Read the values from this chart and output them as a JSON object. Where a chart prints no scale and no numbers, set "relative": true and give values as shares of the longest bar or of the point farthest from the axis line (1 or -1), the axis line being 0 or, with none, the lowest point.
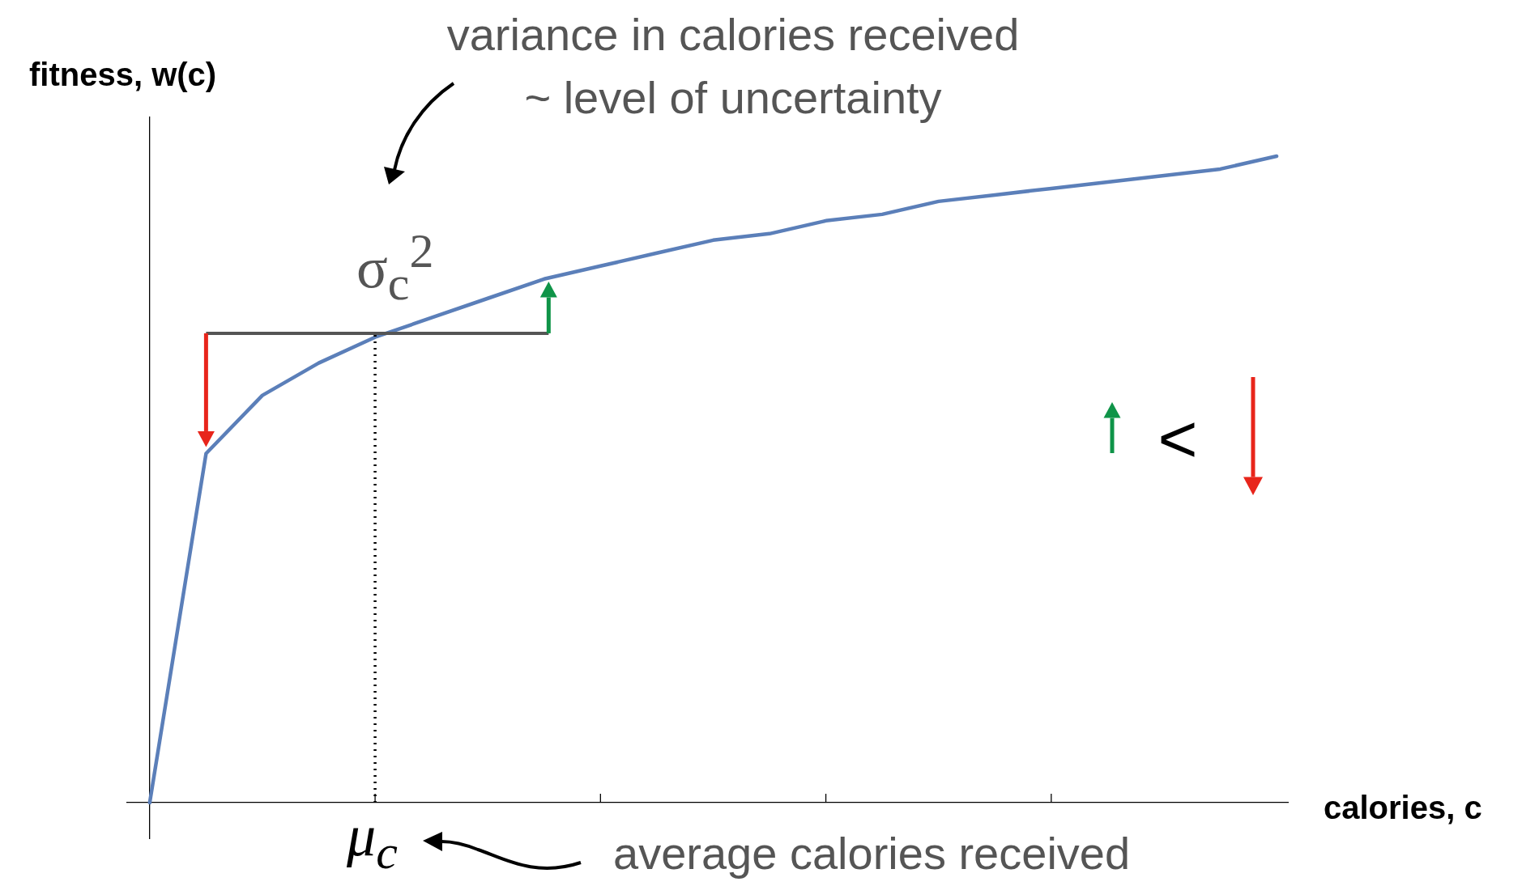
{
  "chart_data": {
    "type": "line",
    "relative": true,
    "xlabel": "calories, c",
    "ylabel": "fitness, w(c)",
    "categories": [
      null,
      null,
      null,
      null,
      null,
      null,
      null,
      null,
      null,
      null,
      null,
      null,
      null,
      null,
      null,
      null,
      null,
      null,
      null,
      null,
      null
    ],
    "series": [
      {
        "color": "#5b7fb9",
        "values": [
          0,
          0.54,
          0.63,
          0.68,
          0.72,
          0.75,
          0.78,
          0.81,
          0.83,
          0.85,
          0.87,
          0.88,
          0.9,
          0.91,
          0.93,
          0.94,
          0.95,
          0.96,
          0.97,
          0.98,
          1
        ]
      }
    ],
    "grid": false,
    "marker": "none",
    "line_style": "solid",
    "annotations": [
      "variance in calories received",
      "~ level of uncertainty",
      "σ$_{c}$$^{2}$",
      "μ$_{c}$",
      "average calories received",
      "<"
    ]
  }
}
